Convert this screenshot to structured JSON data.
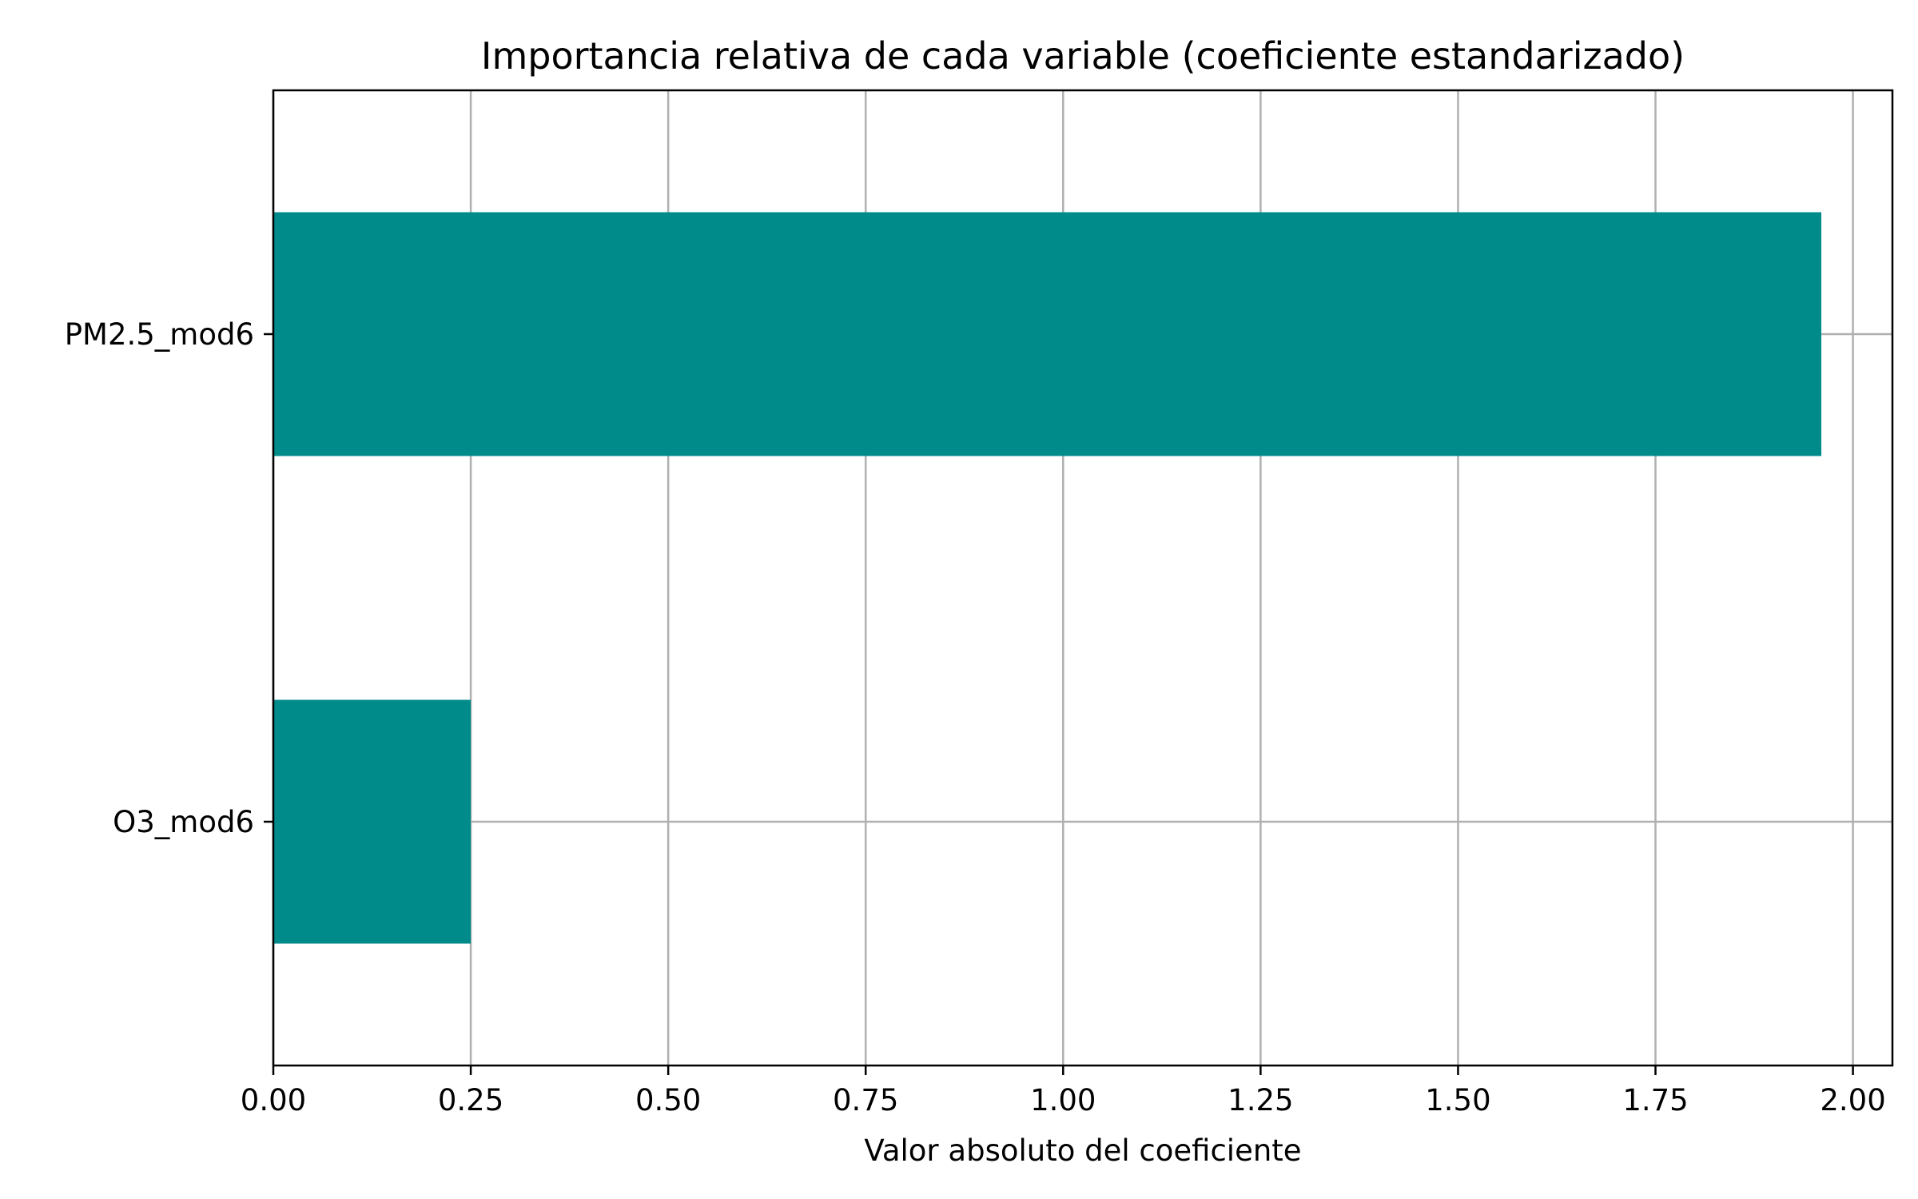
{
  "chart_data": {
    "type": "bar",
    "orientation": "horizontal",
    "title": "Importancia relativa de cada variable (coeficiente estandarizado)",
    "xlabel": "Valor absoluto del coeficiente",
    "ylabel": "",
    "categories": [
      "O3_mod6",
      "PM2.5_mod6"
    ],
    "values": [
      0.25,
      1.96
    ],
    "xlim": [
      0,
      2.05
    ],
    "xticks": [
      0.0,
      0.25,
      0.5,
      0.75,
      1.0,
      1.25,
      1.5,
      1.75,
      2.0
    ],
    "xtick_labels": [
      "0.00",
      "0.25",
      "0.50",
      "0.75",
      "1.00",
      "1.25",
      "1.50",
      "1.75",
      "2.00"
    ],
    "grid": true,
    "bar_color": "#008b8b",
    "grid_color": "#b0b0b0"
  }
}
